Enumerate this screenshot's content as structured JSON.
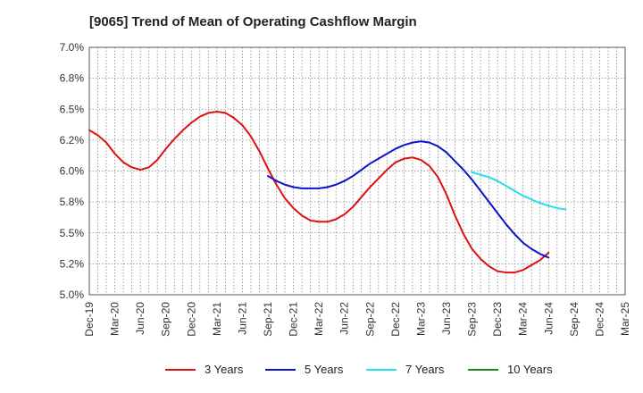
{
  "chart_data": {
    "type": "line",
    "title": "[9065]  Trend of Mean of Operating Cashflow Margin",
    "xlabel": "",
    "ylabel": "",
    "ylim": [
      5.0,
      7.0
    ],
    "yticks": [
      "7.0%",
      "6.8%",
      "6.5%",
      "6.2%",
      "6.0%",
      "5.8%",
      "5.5%",
      "5.2%",
      "5.0%"
    ],
    "ytick_values": [
      7.0,
      6.75,
      6.5,
      6.25,
      6.0,
      5.75,
      5.5,
      5.25,
      5.0
    ],
    "x_categories": [
      "Dec-19",
      "Mar-20",
      "Jun-20",
      "Sep-20",
      "Dec-20",
      "Mar-21",
      "Jun-21",
      "Sep-21",
      "Dec-21",
      "Mar-22",
      "Jun-22",
      "Sep-22",
      "Dec-22",
      "Mar-23",
      "Jun-23",
      "Sep-23",
      "Dec-23",
      "Mar-24",
      "Jun-24",
      "Sep-24",
      "Dec-24",
      "Mar-25"
    ],
    "grid": true,
    "legend_position": "bottom",
    "series": [
      {
        "name": "3 Years",
        "color": "#dd1111",
        "x_start": "Dec-19",
        "values": [
          6.33,
          6.29,
          6.23,
          6.14,
          6.07,
          6.03,
          6.01,
          6.03,
          6.09,
          6.18,
          6.26,
          6.33,
          6.39,
          6.44,
          6.47,
          6.48,
          6.47,
          6.43,
          6.37,
          6.28,
          6.16,
          6.02,
          5.89,
          5.78,
          5.7,
          5.64,
          5.6,
          5.59,
          5.59,
          5.61,
          5.65,
          5.71,
          5.79,
          5.87,
          5.94,
          6.01,
          6.07,
          6.1,
          6.11,
          6.09,
          6.04,
          5.95,
          5.81,
          5.64,
          5.49,
          5.37,
          5.29,
          5.23,
          5.19,
          5.18,
          5.18,
          5.2,
          5.24,
          5.28,
          5.34
        ]
      },
      {
        "name": "5 Years",
        "color": "#0a14c8",
        "x_start": "Sep-21",
        "values": [
          5.96,
          5.92,
          5.89,
          5.87,
          5.86,
          5.86,
          5.86,
          5.87,
          5.89,
          5.92,
          5.96,
          6.01,
          6.06,
          6.1,
          6.14,
          6.18,
          6.21,
          6.23,
          6.24,
          6.23,
          6.2,
          6.15,
          6.08,
          6.01,
          5.93,
          5.84,
          5.75,
          5.66,
          5.57,
          5.49,
          5.42,
          5.37,
          5.33,
          5.3
        ]
      },
      {
        "name": "7 Years",
        "color": "#22e0e8",
        "x_start": "Sep-23",
        "values": [
          5.99,
          5.97,
          5.95,
          5.92,
          5.88,
          5.84,
          5.8,
          5.77,
          5.74,
          5.72,
          5.7,
          5.69
        ]
      },
      {
        "name": "10 Years",
        "color": "#1a8a1a",
        "x_start": "Sep-24",
        "values": []
      }
    ]
  }
}
